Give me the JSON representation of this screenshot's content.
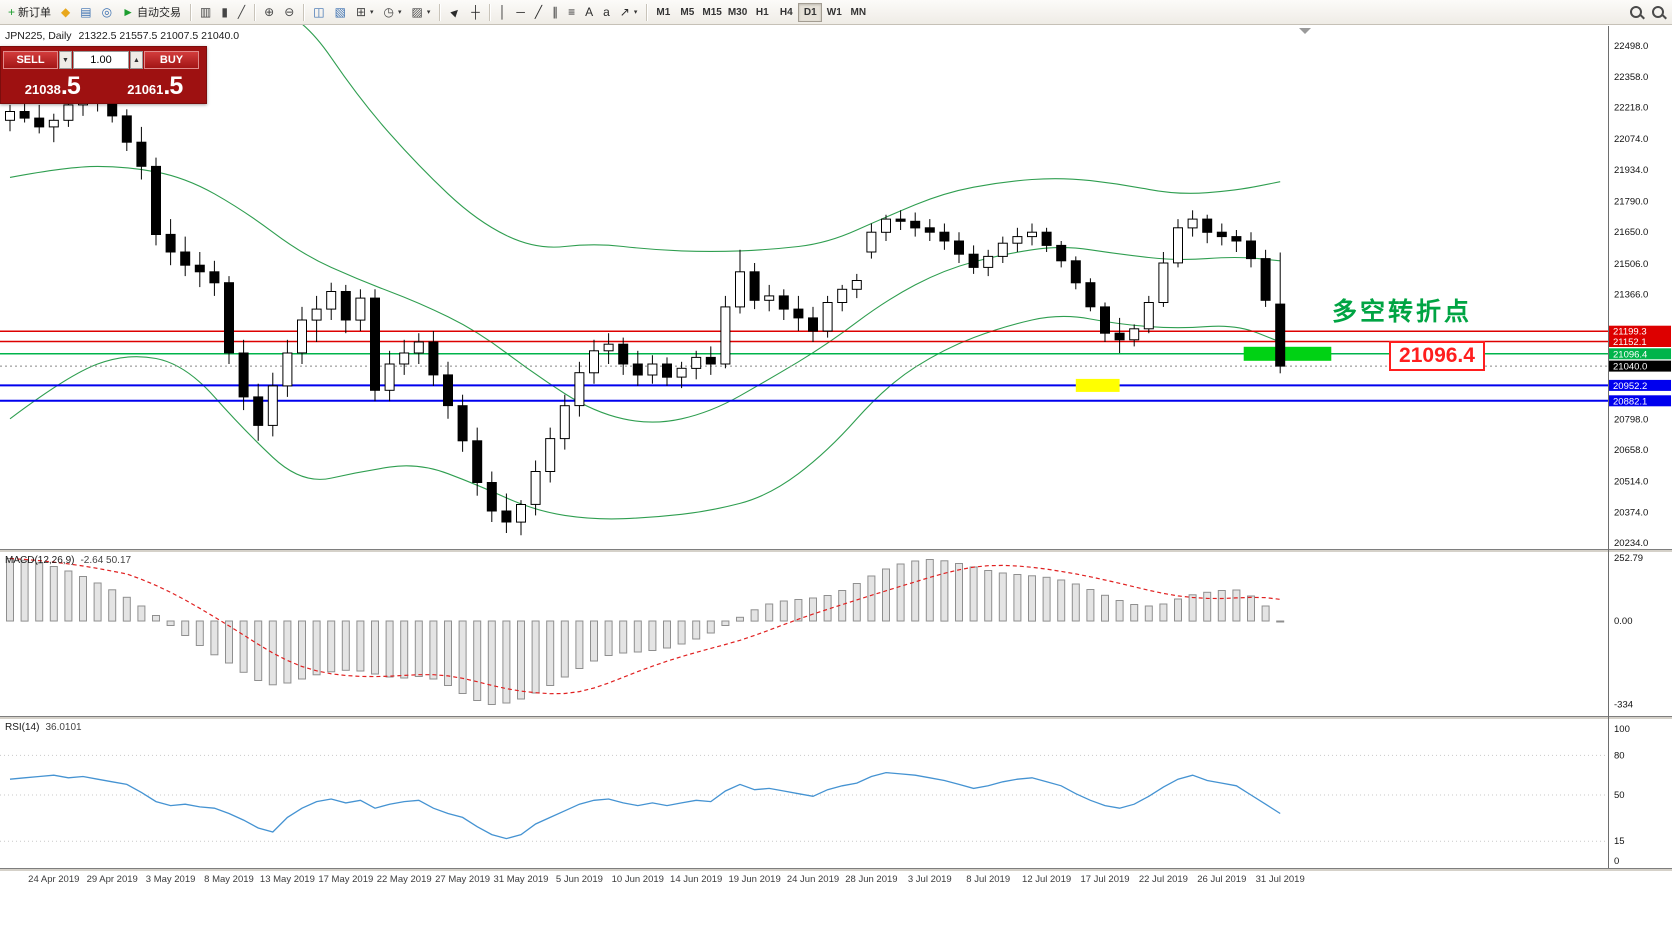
{
  "toolbar": {
    "buttons": [
      {
        "name": "new-order-button",
        "glyph": "+",
        "color": "#1d9e2f",
        "label": "新订单"
      },
      {
        "name": "mql-community-button",
        "glyph": "◆",
        "color": "#e8a71c"
      },
      {
        "name": "market-watch-button",
        "glyph": "▤",
        "color": "#3a6fb0"
      },
      {
        "name": "data-window-button",
        "glyph": "◎",
        "color": "#3a6fb0"
      },
      {
        "name": "autotrading-button",
        "glyph": "►",
        "color": "#1d9e2f",
        "label": "自动交易",
        "sep_after": true
      },
      {
        "name": "bar-chart-button",
        "glyph": "▥",
        "color": "#454545"
      },
      {
        "name": "candlestick-chart-button",
        "glyph": "▮",
        "color": "#454545"
      },
      {
        "name": "line-chart-button",
        "glyph": "╱",
        "color": "#454545",
        "sep_after": true
      },
      {
        "name": "zoom-in-button",
        "glyph": "⊕",
        "color": "#454545"
      },
      {
        "name": "zoom-out-button",
        "glyph": "⊖",
        "color": "#454545",
        "sep_after": true
      },
      {
        "name": "tile-windows-button",
        "glyph": "◫",
        "color": "#3a6fb0"
      },
      {
        "name": "cascade-windows-button",
        "glyph": "▧",
        "color": "#3a6fb0"
      },
      {
        "name": "new-chart-button",
        "glyph": "⊞",
        "color": "#454545",
        "caret": true
      },
      {
        "name": "period-button",
        "glyph": "◷",
        "color": "#454545",
        "caret": true
      },
      {
        "name": "template-button",
        "glyph": "▨",
        "color": "#454545",
        "caret": true,
        "sep_after": true
      },
      {
        "name": "cursor-button",
        "glyph": "►",
        "color": "#2b2b2b",
        "rotate": -45
      },
      {
        "name": "crosshair-button",
        "glyph": "┼",
        "color": "#2b2b2b",
        "sep_after": true
      },
      {
        "name": "vertical-line-button",
        "glyph": "│",
        "color": "#2b2b2b"
      },
      {
        "name": "horizontal-line-button",
        "glyph": "─",
        "color": "#2b2b2b"
      },
      {
        "name": "trendline-button",
        "glyph": "╱",
        "color": "#2b2b2b"
      },
      {
        "name": "channel-button",
        "glyph": "∥",
        "color": "#2b2b2b"
      },
      {
        "name": "fibonacci-button",
        "glyph": "≡",
        "color": "#2b2b2b"
      },
      {
        "name": "text-button",
        "glyph": "A",
        "color": "#2b2b2b"
      },
      {
        "name": "label-button",
        "glyph": "a",
        "color": "#2b2b2b"
      },
      {
        "name": "arrows-button",
        "glyph": "↗",
        "color": "#2b2b2b",
        "caret": true,
        "sep_after": true
      }
    ],
    "timeframes": [
      {
        "label": "M1"
      },
      {
        "label": "M5"
      },
      {
        "label": "M15"
      },
      {
        "label": "M30"
      },
      {
        "label": "H1"
      },
      {
        "label": "H4"
      },
      {
        "label": "D1",
        "active": true
      },
      {
        "label": "W1"
      },
      {
        "label": "MN"
      }
    ],
    "right_buttons": [
      {
        "name": "search-symbol-button"
      },
      {
        "name": "search-chart-button"
      }
    ]
  },
  "chart": {
    "symbol_period": "JPN225, Daily",
    "ohlc": "21322.5 21557.5 21007.5 21040.0"
  },
  "oct": {
    "sell_label": "SELL",
    "buy_label": "BUY",
    "volume": "1.00",
    "sell_price": "21038.5",
    "buy_price": "21061.5"
  },
  "annotations": {
    "turning_point": "多空转折点",
    "price_callout": "21096.4"
  },
  "indicators": {
    "macd": {
      "label": "MACD(12,26,9)",
      "values": "-2.64 50.17",
      "axis": [
        "252.79",
        "0.00",
        "-334"
      ]
    },
    "rsi": {
      "label": "RSI(14)",
      "value": "36.0101",
      "axis": [
        "100",
        "80",
        "50",
        "15",
        "0"
      ],
      "levels": [
        80,
        50,
        15
      ]
    }
  },
  "chart_data": {
    "type": "candlestick",
    "symbol": "JPN225",
    "timeframe": "Daily",
    "x_labels": [
      "24 Apr 2019",
      "29 Apr 2019",
      "3 May 2019",
      "8 May 2019",
      "13 May 2019",
      "17 May 2019",
      "22 May 2019",
      "27 May 2019",
      "31 May 2019",
      "5 Jun 2019",
      "10 Jun 2019",
      "14 Jun 2019",
      "19 Jun 2019",
      "24 Jun 2019",
      "28 Jun 2019",
      "3 Jul 2019",
      "8 Jul 2019",
      "12 Jul 2019",
      "17 Jul 2019",
      "22 Jul 2019",
      "26 Jul 2019",
      "31 Jul 2019"
    ],
    "price_axis_ticks": [
      "22498.0",
      "22358.0",
      "22218.0",
      "22074.0",
      "21934.0",
      "21790.0",
      "21650.0",
      "21506.0",
      "21366.0",
      "20798.0",
      "20658.0",
      "20514.0",
      "20374.0",
      "20234.0"
    ],
    "candles": [
      [
        22160,
        22230,
        22110,
        22200
      ],
      [
        22200,
        22260,
        22150,
        22170
      ],
      [
        22170,
        22230,
        22100,
        22130
      ],
      [
        22130,
        22190,
        22060,
        22160
      ],
      [
        22160,
        22250,
        22130,
        22230
      ],
      [
        22230,
        22310,
        22180,
        22280
      ],
      [
        22280,
        22320,
        22200,
        22250
      ],
      [
        22250,
        22290,
        22150,
        22180
      ],
      [
        22180,
        22210,
        22020,
        22060
      ],
      [
        22060,
        22130,
        21890,
        21950
      ],
      [
        21950,
        21990,
        21590,
        21640
      ],
      [
        21640,
        21710,
        21500,
        21560
      ],
      [
        21560,
        21630,
        21450,
        21500
      ],
      [
        21500,
        21560,
        21400,
        21470
      ],
      [
        21470,
        21520,
        21360,
        21420
      ],
      [
        21420,
        21450,
        21050,
        21100
      ],
      [
        21100,
        21160,
        20840,
        20900
      ],
      [
        20900,
        20960,
        20700,
        20770
      ],
      [
        20770,
        21010,
        20720,
        20950
      ],
      [
        20950,
        21160,
        20900,
        21100
      ],
      [
        21100,
        21310,
        21050,
        21250
      ],
      [
        21250,
        21360,
        21150,
        21300
      ],
      [
        21300,
        21420,
        21250,
        21380
      ],
      [
        21380,
        21410,
        21190,
        21250
      ],
      [
        21250,
        21390,
        21200,
        21350
      ],
      [
        21350,
        21390,
        20880,
        20930
      ],
      [
        20930,
        21110,
        20880,
        21050
      ],
      [
        21050,
        21160,
        21000,
        21100
      ],
      [
        21100,
        21190,
        21050,
        21150
      ],
      [
        21150,
        21200,
        20950,
        21000
      ],
      [
        21000,
        21060,
        20800,
        20860
      ],
      [
        20860,
        20910,
        20650,
        20700
      ],
      [
        20700,
        20760,
        20450,
        20510
      ],
      [
        20510,
        20560,
        20330,
        20380
      ],
      [
        20380,
        20460,
        20280,
        20330
      ],
      [
        20330,
        20430,
        20270,
        20410
      ],
      [
        20410,
        20610,
        20360,
        20560
      ],
      [
        20560,
        20760,
        20510,
        20710
      ],
      [
        20710,
        20910,
        20660,
        20860
      ],
      [
        20860,
        21060,
        20810,
        21010
      ],
      [
        21010,
        21160,
        20960,
        21110
      ],
      [
        21110,
        21190,
        21050,
        21140
      ],
      [
        21140,
        21170,
        21000,
        21050
      ],
      [
        21050,
        21110,
        20950,
        21000
      ],
      [
        21000,
        21090,
        20960,
        21050
      ],
      [
        21050,
        21080,
        20950,
        20990
      ],
      [
        20990,
        21060,
        20940,
        21030
      ],
      [
        21030,
        21110,
        20980,
        21080
      ],
      [
        21080,
        21130,
        21000,
        21050
      ],
      [
        21050,
        21360,
        21030,
        21310
      ],
      [
        21310,
        21570,
        21280,
        21470
      ],
      [
        21470,
        21510,
        21300,
        21340
      ],
      [
        21340,
        21410,
        21290,
        21360
      ],
      [
        21360,
        21390,
        21250,
        21300
      ],
      [
        21300,
        21360,
        21200,
        21260
      ],
      [
        21260,
        21310,
        21150,
        21200
      ],
      [
        21200,
        21360,
        21170,
        21330
      ],
      [
        21330,
        21410,
        21290,
        21390
      ],
      [
        21390,
        21460,
        21350,
        21430
      ],
      [
        21560,
        21690,
        21530,
        21650
      ],
      [
        21650,
        21730,
        21610,
        21710
      ],
      [
        21710,
        21750,
        21660,
        21700
      ],
      [
        21700,
        21740,
        21630,
        21670
      ],
      [
        21670,
        21710,
        21610,
        21650
      ],
      [
        21650,
        21690,
        21570,
        21610
      ],
      [
        21610,
        21650,
        21510,
        21550
      ],
      [
        21550,
        21590,
        21460,
        21490
      ],
      [
        21490,
        21570,
        21450,
        21540
      ],
      [
        21540,
        21630,
        21510,
        21600
      ],
      [
        21600,
        21670,
        21560,
        21630
      ],
      [
        21630,
        21690,
        21590,
        21650
      ],
      [
        21650,
        21670,
        21560,
        21590
      ],
      [
        21590,
        21610,
        21490,
        21520
      ],
      [
        21520,
        21540,
        21390,
        21420
      ],
      [
        21420,
        21440,
        21290,
        21310
      ],
      [
        21310,
        21330,
        21150,
        21190
      ],
      [
        21190,
        21260,
        21100,
        21160
      ],
      [
        21160,
        21230,
        21130,
        21210
      ],
      [
        21210,
        21360,
        21190,
        21330
      ],
      [
        21330,
        21560,
        21310,
        21510
      ],
      [
        21510,
        21710,
        21490,
        21670
      ],
      [
        21670,
        21750,
        21630,
        21710
      ],
      [
        21710,
        21730,
        21600,
        21650
      ],
      [
        21650,
        21690,
        21590,
        21630
      ],
      [
        21630,
        21660,
        21560,
        21610
      ],
      [
        21610,
        21650,
        21490,
        21530
      ],
      [
        21530,
        21570,
        21310,
        21340
      ],
      [
        21322.5,
        21557.5,
        21007.5,
        21040.0
      ]
    ],
    "bollinger": {
      "keypoint_indices": [
        0,
        4,
        8,
        12,
        16,
        20,
        24,
        28,
        32,
        36,
        40,
        44,
        48,
        52,
        56,
        60,
        64,
        68,
        72,
        76,
        80,
        84,
        87
      ],
      "upper": [
        23000,
        22900,
        22800,
        22720,
        22700,
        22640,
        22250,
        21950,
        21700,
        21570,
        21600,
        21570,
        21560,
        21570,
        21600,
        21720,
        21830,
        21880,
        21900,
        21870,
        21820,
        21840,
        21880
      ],
      "middle": [
        21900,
        21950,
        21950,
        21900,
        21750,
        21550,
        21430,
        21330,
        21200,
        21000,
        20830,
        20770,
        20830,
        20980,
        21140,
        21340,
        21480,
        21550,
        21590,
        21550,
        21520,
        21540,
        21520
      ],
      "lower": [
        20800,
        21000,
        21100,
        21050,
        20750,
        20500,
        20560,
        20600,
        20500,
        20380,
        20340,
        20350,
        20380,
        20450,
        20650,
        20950,
        21120,
        21220,
        21280,
        21230,
        21210,
        21230,
        21150
      ]
    },
    "levels": [
      {
        "price": 21199.3,
        "label": "21199.3",
        "color": "#dd0000",
        "width": 1.5
      },
      {
        "price": 21152.1,
        "label": "21152.1",
        "color": "#dd0000",
        "width": 1.5
      },
      {
        "price": 21096.4,
        "label": "21096.4",
        "color": "#00b44b",
        "width": 1.5
      },
      {
        "price": 20952.2,
        "label": "20952.2",
        "color": "#0000ee",
        "width": 2
      },
      {
        "price": 20882.1,
        "label": "20882.1",
        "color": "#0000ee",
        "width": 2
      }
    ],
    "current_price": {
      "price": 21040.0,
      "label": "21040.0",
      "color": "#000000"
    },
    "highlights": [
      {
        "name": "green-highlight-bar",
        "color": "#00d214",
        "from_candle": 84.5,
        "to_candle": 90.5,
        "price": 21096.4,
        "height": 14
      },
      {
        "name": "yellow-highlight-bar",
        "color": "#ffff00",
        "from_candle": 73,
        "to_candle": 76,
        "price": 20952.2,
        "height": 13
      }
    ],
    "macd_histogram": [
      250,
      243,
      232,
      218,
      200,
      178,
      152,
      125,
      95,
      60,
      22,
      -18,
      -58,
      -98,
      -135,
      -168,
      -205,
      -238,
      -255,
      -248,
      -232,
      -215,
      -203,
      -197,
      -200,
      -212,
      -224,
      -228,
      -222,
      -232,
      -258,
      -290,
      -318,
      -334,
      -328,
      -312,
      -288,
      -258,
      -224,
      -190,
      -160,
      -138,
      -128,
      -124,
      -118,
      -108,
      -92,
      -72,
      -48,
      -18,
      15,
      45,
      68,
      80,
      86,
      92,
      102,
      122,
      150,
      180,
      208,
      228,
      240,
      246,
      241,
      230,
      216,
      202,
      192,
      186,
      181,
      175,
      164,
      148,
      126,
      103,
      82,
      66,
      60,
      68,
      88,
      105,
      115,
      122,
      124,
      100,
      60,
      -3
    ],
    "rsi_values": [
      62,
      63,
      64,
      65,
      63,
      64,
      62,
      60,
      58,
      52,
      45,
      42,
      43,
      41,
      40,
      36,
      31,
      25,
      22,
      33,
      40,
      45,
      47,
      44,
      46,
      40,
      43,
      45,
      46,
      40,
      36,
      33,
      26,
      20,
      17,
      20,
      28,
      33,
      38,
      43,
      46,
      47,
      44,
      42,
      44,
      42,
      44,
      46,
      45,
      53,
      58,
      54,
      55,
      53,
      51,
      49,
      54,
      57,
      59,
      64,
      67,
      66,
      65,
      63,
      61,
      58,
      55,
      57,
      60,
      62,
      63,
      60,
      57,
      51,
      46,
      42,
      40,
      43,
      49,
      56,
      62,
      65,
      61,
      59,
      57,
      50,
      43,
      36.0101
    ]
  }
}
